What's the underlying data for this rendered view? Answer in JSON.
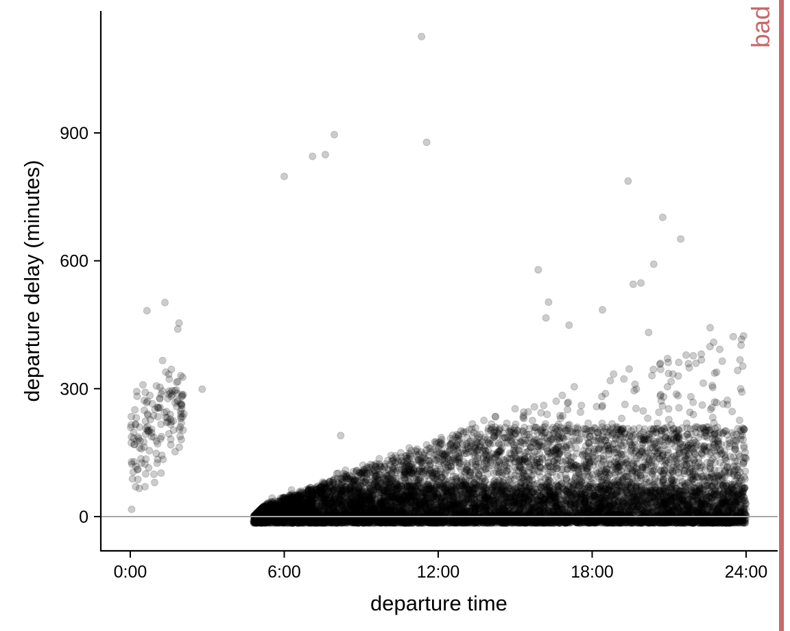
{
  "chart_data": {
    "type": "scatter",
    "title": "",
    "xlabel": "departure time",
    "ylabel": "departure delay (minutes)",
    "xlim": [
      -1.2,
      25.2
    ],
    "ylim": [
      -80,
      1180
    ],
    "x_ticks": [
      {
        "value": 0,
        "label": "0:00"
      },
      {
        "value": 6,
        "label": "6:00"
      },
      {
        "value": 12,
        "label": "12:00"
      },
      {
        "value": 18,
        "label": "18:00"
      },
      {
        "value": 24,
        "label": "24:00"
      }
    ],
    "y_ticks": [
      {
        "value": 0,
        "label": "0"
      },
      {
        "value": 300,
        "label": "300"
      },
      {
        "value": 600,
        "label": "600"
      },
      {
        "value": 900,
        "label": "900"
      }
    ],
    "reference_line": {
      "y": 0,
      "color": "#a6a6a6"
    },
    "point_color": "#000000",
    "point_opacity": 0.2,
    "x_units": "hours after midnight",
    "y_units": "minutes",
    "outliers": [
      {
        "x": 11.35,
        "y": 1126
      },
      {
        "x": 11.55,
        "y": 878
      },
      {
        "x": 7.95,
        "y": 896
      },
      {
        "x": 7.6,
        "y": 849
      },
      {
        "x": 7.1,
        "y": 845
      },
      {
        "x": 6.0,
        "y": 798
      },
      {
        "x": 19.4,
        "y": 787
      },
      {
        "x": 20.75,
        "y": 702
      },
      {
        "x": 21.45,
        "y": 651
      },
      {
        "x": 20.4,
        "y": 592
      },
      {
        "x": 19.9,
        "y": 548
      },
      {
        "x": 19.6,
        "y": 545
      },
      {
        "x": 15.9,
        "y": 579
      },
      {
        "x": 16.3,
        "y": 503
      },
      {
        "x": 16.2,
        "y": 466
      },
      {
        "x": 17.1,
        "y": 449
      },
      {
        "x": 18.4,
        "y": 485
      },
      {
        "x": 22.6,
        "y": 443
      },
      {
        "x": 20.2,
        "y": 432
      },
      {
        "x": 23.9,
        "y": 424
      },
      {
        "x": 23.5,
        "y": 422
      },
      {
        "x": 1.35,
        "y": 502
      },
      {
        "x": 0.65,
        "y": 483
      },
      {
        "x": 1.9,
        "y": 454
      },
      {
        "x": 1.85,
        "y": 440
      },
      {
        "x": 2.8,
        "y": 299
      },
      {
        "x": 0.05,
        "y": 17
      },
      {
        "x": 0.35,
        "y": 66
      },
      {
        "x": 1.2,
        "y": 102
      },
      {
        "x": 0.95,
        "y": 80
      },
      {
        "x": 8.2,
        "y": 190
      }
    ],
    "bulk_regions": [
      {
        "name": "after-midnight cluster",
        "x_range": [
          0.0,
          2.1
        ],
        "y_range": [
          70,
          400
        ],
        "approx_points": 150
      },
      {
        "name": "daytime flights",
        "x_range": [
          4.8,
          24.0
        ],
        "y_range": [
          -20,
          420
        ],
        "approx_points": 9000
      }
    ]
  },
  "badge": {
    "text": "bad",
    "color": "#c8696a"
  }
}
